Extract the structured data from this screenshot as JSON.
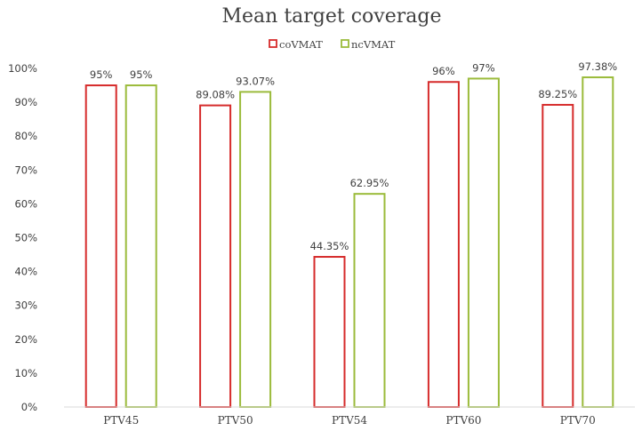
{
  "chart_data": {
    "type": "bar",
    "title": "Mean target coverage",
    "categories": [
      "PTV45",
      "PTV50",
      "PTV54",
      "PTV60",
      "PTV70"
    ],
    "series": [
      {
        "name": "coVMAT",
        "color": "#d62b2b",
        "values": [
          95,
          89.08,
          44.35,
          96,
          89.25
        ],
        "labels": [
          "95%",
          "89.08%",
          "44.35%",
          "96%",
          "89.25%"
        ]
      },
      {
        "name": "ncVMAT",
        "color": "#9bbb3b",
        "values": [
          95,
          93.07,
          62.95,
          97,
          97.38
        ],
        "labels": [
          "95%",
          "93.07%",
          "62.95%",
          "97%",
          "97.38%"
        ]
      }
    ],
    "y_ticks": [
      "0%",
      "10%",
      "20%",
      "30%",
      "40%",
      "50%",
      "60%",
      "70%",
      "80%",
      "90%",
      "100%"
    ],
    "ylim": [
      0,
      100
    ],
    "legend_position": "top",
    "grid": false
  }
}
